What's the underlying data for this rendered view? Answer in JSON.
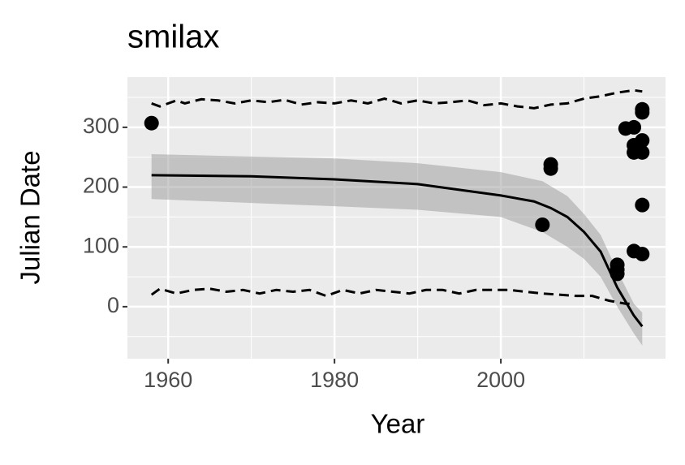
{
  "chart_data": {
    "type": "scatter",
    "title": "smilax",
    "x_label": "Year",
    "y_label": "Julian Date",
    "xlim": [
      1955.1,
      2019.8
    ],
    "ylim": [
      -87,
      384
    ],
    "xticks": [
      1960,
      1980,
      2000
    ],
    "yticks": [
      0,
      100,
      200,
      300
    ],
    "minor_xticks": [
      1970,
      1990,
      2010
    ],
    "minor_yticks": [
      -50,
      50,
      150,
      250,
      350
    ],
    "grid": true,
    "panel_color": "#ebebeb",
    "band": {
      "color": "#999999",
      "x": [
        1958,
        1980,
        1990,
        2000,
        2005,
        2008,
        2010,
        2012,
        2014,
        2016,
        2017
      ],
      "upper": [
        255,
        248,
        240,
        225,
        210,
        185,
        155,
        120,
        60,
        5,
        -10
      ],
      "lower": [
        180,
        168,
        162,
        150,
        125,
        100,
        80,
        50,
        0,
        -45,
        -65
      ]
    },
    "fit": {
      "color": "#000000",
      "x": [
        1958,
        1970,
        1980,
        1990,
        2000,
        2004,
        2006,
        2008,
        2010,
        2012,
        2014,
        2016,
        2017
      ],
      "values": [
        220,
        218,
        213,
        205,
        186,
        176,
        165,
        150,
        125,
        92,
        32,
        -15,
        -33
      ]
    },
    "upper_limit": {
      "color": "#000000",
      "dashed": true,
      "x": [
        1958,
        1959,
        1961,
        1962,
        1964,
        1966,
        1968,
        1970,
        1972,
        1974,
        1976,
        1978,
        1980,
        1982,
        1984,
        1986,
        1988,
        1990,
        1992,
        1994,
        1996,
        1998,
        2000,
        2002,
        2004,
        2006,
        2008,
        2010,
        2012,
        2014,
        2016,
        2017
      ],
      "values": [
        340,
        335,
        345,
        340,
        347,
        345,
        340,
        345,
        342,
        346,
        338,
        342,
        340,
        345,
        340,
        348,
        340,
        345,
        340,
        342,
        345,
        337,
        340,
        335,
        332,
        338,
        340,
        348,
        352,
        358,
        362,
        360
      ]
    },
    "lower_limit": {
      "color": "#000000",
      "dashed": true,
      "x": [
        1958,
        1959,
        1961,
        1963,
        1965,
        1967,
        1969,
        1971,
        1973,
        1975,
        1977,
        1979,
        1981,
        1983,
        1985,
        1987,
        1989,
        1991,
        1993,
        1995,
        1997,
        1999,
        2001,
        2003,
        2005,
        2007,
        2009,
        2011,
        2013,
        2015,
        2016
      ],
      "values": [
        20,
        30,
        22,
        28,
        30,
        25,
        28,
        22,
        28,
        25,
        28,
        18,
        28,
        22,
        28,
        25,
        22,
        28,
        28,
        22,
        28,
        28,
        28,
        25,
        22,
        20,
        18,
        18,
        10,
        5,
        5
      ]
    },
    "points": {
      "color": "#000000",
      "x": [
        1958,
        2005,
        2006,
        2006,
        2014,
        2014,
        2014,
        2015,
        2016,
        2016,
        2016,
        2016,
        2017,
        2017,
        2017,
        2017,
        2017,
        2017
      ],
      "values": [
        307,
        137,
        238,
        231,
        70,
        62,
        55,
        298,
        300,
        270,
        258,
        93,
        330,
        325,
        278,
        258,
        170,
        88
      ]
    }
  }
}
